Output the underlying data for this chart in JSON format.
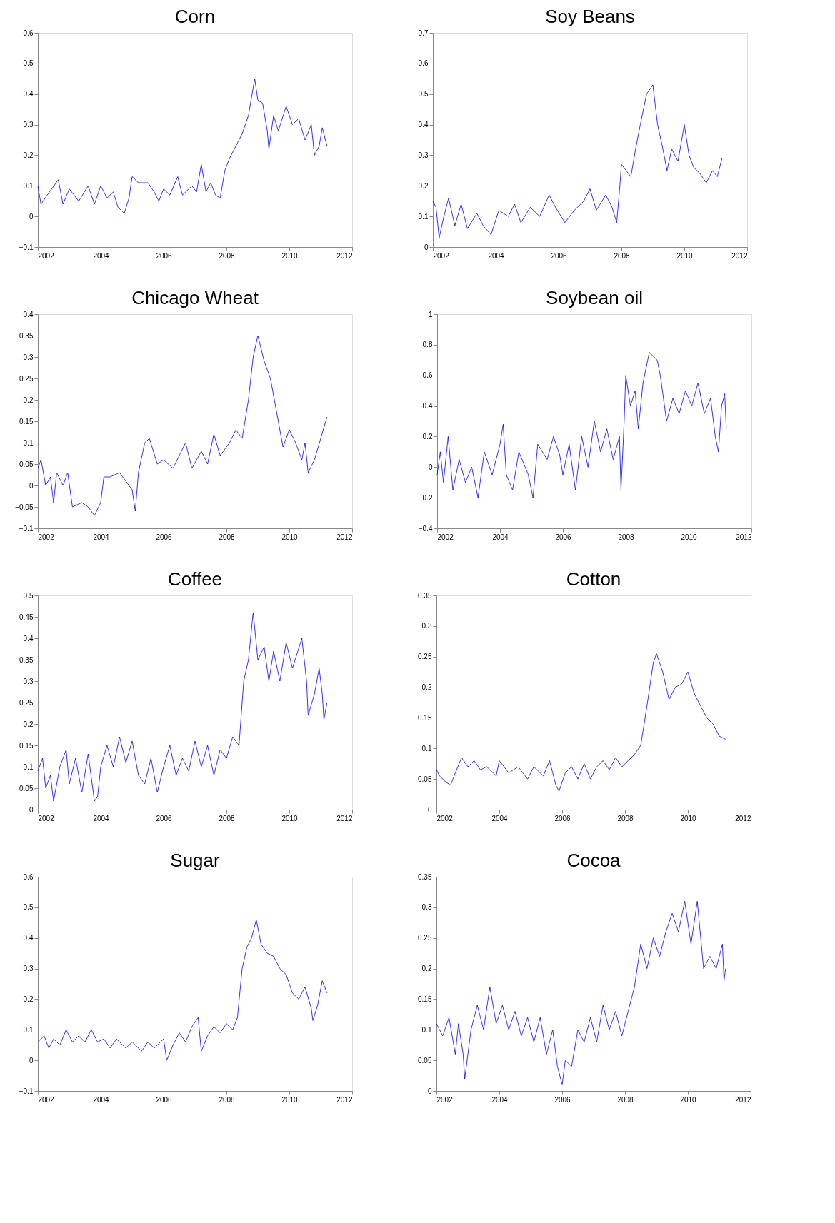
{
  "chart_data": [
    {
      "type": "line",
      "title": "Corn",
      "color": "#0000ff",
      "grid": false,
      "xlim": [
        2002,
        2012
      ],
      "xticks": [
        2002,
        2004,
        2006,
        2008,
        2010,
        2012
      ],
      "ylim": [
        -0.1,
        0.6
      ],
      "yticks": [
        -0.1,
        0,
        0.1,
        0.2,
        0.3,
        0.4,
        0.5,
        0.6
      ],
      "x": [
        2002.0,
        2002.1,
        2002.3,
        2002.65,
        2002.8,
        2003.0,
        2003.3,
        2003.6,
        2003.8,
        2004.0,
        2004.2,
        2004.4,
        2004.55,
        2004.75,
        2004.9,
        2005.0,
        2005.2,
        2005.5,
        2005.7,
        2005.85,
        2006.0,
        2006.2,
        2006.45,
        2006.6,
        2006.9,
        2007.05,
        2007.2,
        2007.35,
        2007.5,
        2007.65,
        2007.8,
        2007.95,
        2008.1,
        2008.3,
        2008.5,
        2008.7,
        2008.9,
        2009.0,
        2009.15,
        2009.3,
        2009.35,
        2009.5,
        2009.65,
        2009.9,
        2010.1,
        2010.3,
        2010.5,
        2010.7,
        2010.8,
        2010.95,
        2011.05,
        2011.15,
        2011.2
      ],
      "values": [
        0.1,
        0.04,
        0.07,
        0.12,
        0.04,
        0.09,
        0.05,
        0.1,
        0.04,
        0.1,
        0.06,
        0.08,
        0.03,
        0.01,
        0.06,
        0.13,
        0.11,
        0.11,
        0.08,
        0.05,
        0.09,
        0.07,
        0.13,
        0.07,
        0.1,
        0.08,
        0.17,
        0.08,
        0.11,
        0.07,
        0.06,
        0.15,
        0.19,
        0.23,
        0.27,
        0.33,
        0.45,
        0.38,
        0.37,
        0.28,
        0.22,
        0.33,
        0.28,
        0.36,
        0.3,
        0.32,
        0.25,
        0.3,
        0.2,
        0.23,
        0.29,
        0.25,
        0.23
      ]
    },
    {
      "type": "line",
      "title": "Soy Beans",
      "color": "#0000ff",
      "grid": false,
      "xlim": [
        2002,
        2012
      ],
      "xticks": [
        2002,
        2004,
        2006,
        2008,
        2010,
        2012
      ],
      "ylim": [
        0,
        0.7
      ],
      "yticks": [
        0,
        0.1,
        0.2,
        0.3,
        0.4,
        0.5,
        0.6,
        0.7
      ],
      "x": [
        2002.0,
        2002.1,
        2002.2,
        2002.35,
        2002.5,
        2002.7,
        2002.9,
        2003.1,
        2003.4,
        2003.6,
        2003.85,
        2004.1,
        2004.4,
        2004.6,
        2004.8,
        2005.1,
        2005.4,
        2005.7,
        2005.9,
        2006.2,
        2006.5,
        2006.8,
        2007.0,
        2007.2,
        2007.5,
        2007.7,
        2007.85,
        2007.95,
        2008.0,
        2008.3,
        2008.45,
        2008.6,
        2008.8,
        2009.0,
        2009.15,
        2009.3,
        2009.45,
        2009.6,
        2009.8,
        2010.0,
        2010.15,
        2010.3,
        2010.5,
        2010.7,
        2010.9,
        2011.05,
        2011.2
      ],
      "values": [
        0.15,
        0.13,
        0.03,
        0.1,
        0.16,
        0.07,
        0.14,
        0.06,
        0.11,
        0.07,
        0.04,
        0.12,
        0.1,
        0.14,
        0.08,
        0.13,
        0.1,
        0.17,
        0.13,
        0.08,
        0.12,
        0.15,
        0.19,
        0.12,
        0.17,
        0.13,
        0.08,
        0.2,
        0.27,
        0.23,
        0.32,
        0.4,
        0.5,
        0.53,
        0.4,
        0.33,
        0.25,
        0.32,
        0.28,
        0.4,
        0.3,
        0.26,
        0.24,
        0.21,
        0.25,
        0.23,
        0.29
      ]
    },
    {
      "type": "line",
      "title": "Chicago Wheat",
      "color": "#0000ff",
      "grid": false,
      "xlim": [
        2002,
        2012
      ],
      "xticks": [
        2002,
        2004,
        2006,
        2008,
        2010,
        2012
      ],
      "ylim": [
        -0.1,
        0.4
      ],
      "yticks": [
        -0.1,
        -0.05,
        0,
        0.05,
        0.1,
        0.15,
        0.2,
        0.25,
        0.3,
        0.35,
        0.4
      ],
      "x": [
        2002.0,
        2002.1,
        2002.25,
        2002.4,
        2002.5,
        2002.6,
        2002.8,
        2002.95,
        2003.1,
        2003.4,
        2003.6,
        2003.8,
        2004.0,
        2004.1,
        2004.3,
        2004.6,
        2004.8,
        2005.0,
        2005.1,
        2005.2,
        2005.4,
        2005.55,
        2005.8,
        2006.0,
        2006.3,
        2006.5,
        2006.7,
        2006.9,
        2007.2,
        2007.4,
        2007.6,
        2007.8,
        2008.1,
        2008.3,
        2008.5,
        2008.7,
        2008.85,
        2009.0,
        2009.2,
        2009.4,
        2009.6,
        2009.8,
        2010.0,
        2010.2,
        2010.4,
        2010.5,
        2010.6,
        2010.8,
        2011.0,
        2011.2
      ],
      "values": [
        0.04,
        0.06,
        0.0,
        0.02,
        -0.04,
        0.03,
        0.0,
        0.03,
        -0.05,
        -0.04,
        -0.05,
        -0.07,
        -0.04,
        0.02,
        0.02,
        0.03,
        0.01,
        -0.01,
        -0.06,
        0.03,
        0.1,
        0.11,
        0.05,
        0.06,
        0.04,
        0.07,
        0.1,
        0.04,
        0.08,
        0.05,
        0.12,
        0.07,
        0.1,
        0.13,
        0.11,
        0.2,
        0.3,
        0.35,
        0.29,
        0.25,
        0.17,
        0.09,
        0.13,
        0.1,
        0.06,
        0.1,
        0.03,
        0.06,
        0.11,
        0.16
      ]
    },
    {
      "type": "line",
      "title": "Soybean oil",
      "color": "#0000ff",
      "grid": false,
      "xlim": [
        2002,
        2012
      ],
      "xticks": [
        2002,
        2004,
        2006,
        2008,
        2010,
        2012
      ],
      "ylim": [
        -0.4,
        1
      ],
      "yticks": [
        -0.4,
        -0.2,
        0,
        0.2,
        0.4,
        0.6,
        0.8,
        1
      ],
      "x": [
        2002.0,
        2002.1,
        2002.2,
        2002.35,
        2002.5,
        2002.7,
        2002.9,
        2003.1,
        2003.3,
        2003.5,
        2003.75,
        2004.0,
        2004.1,
        2004.2,
        2004.4,
        2004.6,
        2004.9,
        2005.05,
        2005.2,
        2005.5,
        2005.7,
        2005.9,
        2006.0,
        2006.2,
        2006.4,
        2006.6,
        2006.8,
        2007.0,
        2007.2,
        2007.4,
        2007.6,
        2007.8,
        2007.85,
        2007.95,
        2008.0,
        2008.15,
        2008.3,
        2008.4,
        2008.55,
        2008.75,
        2009.0,
        2009.1,
        2009.3,
        2009.5,
        2009.7,
        2009.9,
        2010.1,
        2010.3,
        2010.5,
        2010.7,
        2010.85,
        2010.95,
        2011.05,
        2011.15,
        2011.2
      ],
      "values": [
        -0.05,
        0.1,
        -0.1,
        0.2,
        -0.15,
        0.05,
        -0.1,
        0.0,
        -0.2,
        0.1,
        -0.05,
        0.15,
        0.28,
        -0.05,
        -0.15,
        0.1,
        -0.05,
        -0.2,
        0.15,
        0.05,
        0.2,
        0.08,
        -0.05,
        0.15,
        -0.15,
        0.2,
        0.0,
        0.3,
        0.1,
        0.25,
        0.05,
        0.2,
        -0.15,
        0.3,
        0.6,
        0.4,
        0.5,
        0.25,
        0.55,
        0.75,
        0.7,
        0.6,
        0.3,
        0.45,
        0.35,
        0.5,
        0.4,
        0.55,
        0.35,
        0.45,
        0.2,
        0.1,
        0.4,
        0.48,
        0.25
      ]
    },
    {
      "type": "line",
      "title": "Coffee",
      "color": "#0000ff",
      "grid": false,
      "xlim": [
        2002,
        2012
      ],
      "xticks": [
        2002,
        2004,
        2006,
        2008,
        2010,
        2012
      ],
      "ylim": [
        0,
        0.5
      ],
      "yticks": [
        0,
        0.05,
        0.1,
        0.15,
        0.2,
        0.25,
        0.3,
        0.35,
        0.4,
        0.45,
        0.5
      ],
      "x": [
        2002.0,
        2002.15,
        2002.25,
        2002.4,
        2002.5,
        2002.7,
        2002.9,
        2003.0,
        2003.2,
        2003.4,
        2003.6,
        2003.8,
        2003.9,
        2004.0,
        2004.2,
        2004.4,
        2004.6,
        2004.8,
        2005.0,
        2005.2,
        2005.4,
        2005.6,
        2005.8,
        2006.0,
        2006.2,
        2006.4,
        2006.6,
        2006.8,
        2007.0,
        2007.2,
        2007.4,
        2007.6,
        2007.8,
        2008.0,
        2008.2,
        2008.4,
        2008.55,
        2008.7,
        2008.85,
        2009.0,
        2009.2,
        2009.35,
        2009.5,
        2009.7,
        2009.9,
        2010.1,
        2010.4,
        2010.55,
        2010.6,
        2010.8,
        2010.95,
        2011.05,
        2011.1,
        2011.2
      ],
      "values": [
        0.09,
        0.12,
        0.05,
        0.08,
        0.02,
        0.1,
        0.14,
        0.06,
        0.12,
        0.04,
        0.13,
        0.02,
        0.03,
        0.1,
        0.15,
        0.1,
        0.17,
        0.11,
        0.16,
        0.08,
        0.06,
        0.12,
        0.04,
        0.1,
        0.15,
        0.08,
        0.12,
        0.09,
        0.16,
        0.1,
        0.15,
        0.08,
        0.14,
        0.12,
        0.17,
        0.15,
        0.3,
        0.35,
        0.46,
        0.35,
        0.38,
        0.3,
        0.37,
        0.3,
        0.39,
        0.33,
        0.4,
        0.3,
        0.22,
        0.27,
        0.33,
        0.27,
        0.21,
        0.25
      ]
    },
    {
      "type": "line",
      "title": "Cotton",
      "color": "#0000ff",
      "grid": false,
      "xlim": [
        2002,
        2012
      ],
      "xticks": [
        2002,
        2004,
        2006,
        2008,
        2010,
        2012
      ],
      "ylim": [
        0,
        0.35
      ],
      "yticks": [
        0,
        0.05,
        0.1,
        0.15,
        0.2,
        0.25,
        0.3,
        0.35
      ],
      "x": [
        2002.0,
        2002.1,
        2002.3,
        2002.45,
        2002.6,
        2002.8,
        2003.0,
        2003.2,
        2003.4,
        2003.6,
        2003.9,
        2004.0,
        2004.3,
        2004.6,
        2004.9,
        2005.1,
        2005.4,
        2005.6,
        2005.8,
        2005.9,
        2006.1,
        2006.3,
        2006.5,
        2006.7,
        2006.9,
        2007.1,
        2007.3,
        2007.5,
        2007.7,
        2007.9,
        2008.1,
        2008.3,
        2008.5,
        2008.7,
        2008.9,
        2009.0,
        2009.2,
        2009.4,
        2009.6,
        2009.8,
        2010.0,
        2010.2,
        2010.4,
        2010.6,
        2010.8,
        2011.0,
        2011.2
      ],
      "values": [
        0.065,
        0.055,
        0.045,
        0.04,
        0.06,
        0.085,
        0.07,
        0.08,
        0.065,
        0.07,
        0.055,
        0.08,
        0.06,
        0.07,
        0.05,
        0.07,
        0.055,
        0.08,
        0.04,
        0.03,
        0.06,
        0.07,
        0.05,
        0.075,
        0.05,
        0.07,
        0.08,
        0.065,
        0.085,
        0.07,
        0.08,
        0.09,
        0.105,
        0.17,
        0.24,
        0.255,
        0.225,
        0.18,
        0.2,
        0.205,
        0.225,
        0.19,
        0.17,
        0.15,
        0.14,
        0.12,
        0.115
      ]
    },
    {
      "type": "line",
      "title": "Sugar",
      "color": "#0000ff",
      "grid": false,
      "xlim": [
        2002,
        2012
      ],
      "xticks": [
        2002,
        2004,
        2006,
        2008,
        2010,
        2012
      ],
      "ylim": [
        -0.1,
        0.6
      ],
      "yticks": [
        -0.1,
        0,
        0.1,
        0.2,
        0.3,
        0.4,
        0.5,
        0.6
      ],
      "x": [
        2002.0,
        2002.2,
        2002.35,
        2002.5,
        2002.7,
        2002.9,
        2003.1,
        2003.3,
        2003.5,
        2003.7,
        2003.9,
        2004.1,
        2004.3,
        2004.5,
        2004.8,
        2005.0,
        2005.3,
        2005.5,
        2005.7,
        2006.0,
        2006.1,
        2006.3,
        2006.5,
        2006.7,
        2006.9,
        2007.1,
        2007.2,
        2007.4,
        2007.6,
        2007.8,
        2008.0,
        2008.2,
        2008.35,
        2008.5,
        2008.65,
        2008.8,
        2008.95,
        2009.1,
        2009.3,
        2009.5,
        2009.7,
        2009.9,
        2010.1,
        2010.3,
        2010.5,
        2010.7,
        2010.75,
        2010.9,
        2011.05,
        2011.2
      ],
      "values": [
        0.06,
        0.08,
        0.04,
        0.07,
        0.05,
        0.1,
        0.06,
        0.08,
        0.06,
        0.1,
        0.06,
        0.07,
        0.04,
        0.07,
        0.04,
        0.06,
        0.03,
        0.06,
        0.04,
        0.07,
        0.0,
        0.05,
        0.09,
        0.06,
        0.11,
        0.14,
        0.03,
        0.08,
        0.11,
        0.09,
        0.12,
        0.1,
        0.14,
        0.3,
        0.37,
        0.4,
        0.46,
        0.38,
        0.35,
        0.34,
        0.3,
        0.28,
        0.22,
        0.2,
        0.24,
        0.17,
        0.13,
        0.18,
        0.26,
        0.22
      ]
    },
    {
      "type": "line",
      "title": "Cocoa",
      "color": "#0000ff",
      "grid": false,
      "xlim": [
        2002,
        2012
      ],
      "xticks": [
        2002,
        2004,
        2006,
        2008,
        2010,
        2012
      ],
      "ylim": [
        0,
        0.35
      ],
      "yticks": [
        0,
        0.05,
        0.1,
        0.15,
        0.2,
        0.25,
        0.3,
        0.35
      ],
      "x": [
        2002.0,
        2002.2,
        2002.4,
        2002.6,
        2002.7,
        2002.85,
        2002.9,
        2003.1,
        2003.3,
        2003.5,
        2003.7,
        2003.9,
        2004.1,
        2004.3,
        2004.5,
        2004.7,
        2004.9,
        2005.1,
        2005.3,
        2005.5,
        2005.7,
        2005.85,
        2006.0,
        2006.1,
        2006.3,
        2006.5,
        2006.7,
        2006.9,
        2007.1,
        2007.3,
        2007.5,
        2007.7,
        2007.9,
        2008.1,
        2008.3,
        2008.5,
        2008.7,
        2008.9,
        2009.1,
        2009.3,
        2009.5,
        2009.7,
        2009.9,
        2010.1,
        2010.3,
        2010.5,
        2010.7,
        2010.9,
        2011.1,
        2011.15,
        2011.2
      ],
      "values": [
        0.11,
        0.09,
        0.12,
        0.06,
        0.11,
        0.06,
        0.02,
        0.1,
        0.14,
        0.1,
        0.17,
        0.11,
        0.14,
        0.1,
        0.13,
        0.09,
        0.12,
        0.08,
        0.12,
        0.06,
        0.1,
        0.04,
        0.01,
        0.05,
        0.04,
        0.1,
        0.08,
        0.12,
        0.08,
        0.14,
        0.1,
        0.13,
        0.09,
        0.13,
        0.17,
        0.24,
        0.2,
        0.25,
        0.22,
        0.26,
        0.29,
        0.26,
        0.31,
        0.24,
        0.31,
        0.2,
        0.22,
        0.2,
        0.24,
        0.18,
        0.2
      ]
    }
  ]
}
